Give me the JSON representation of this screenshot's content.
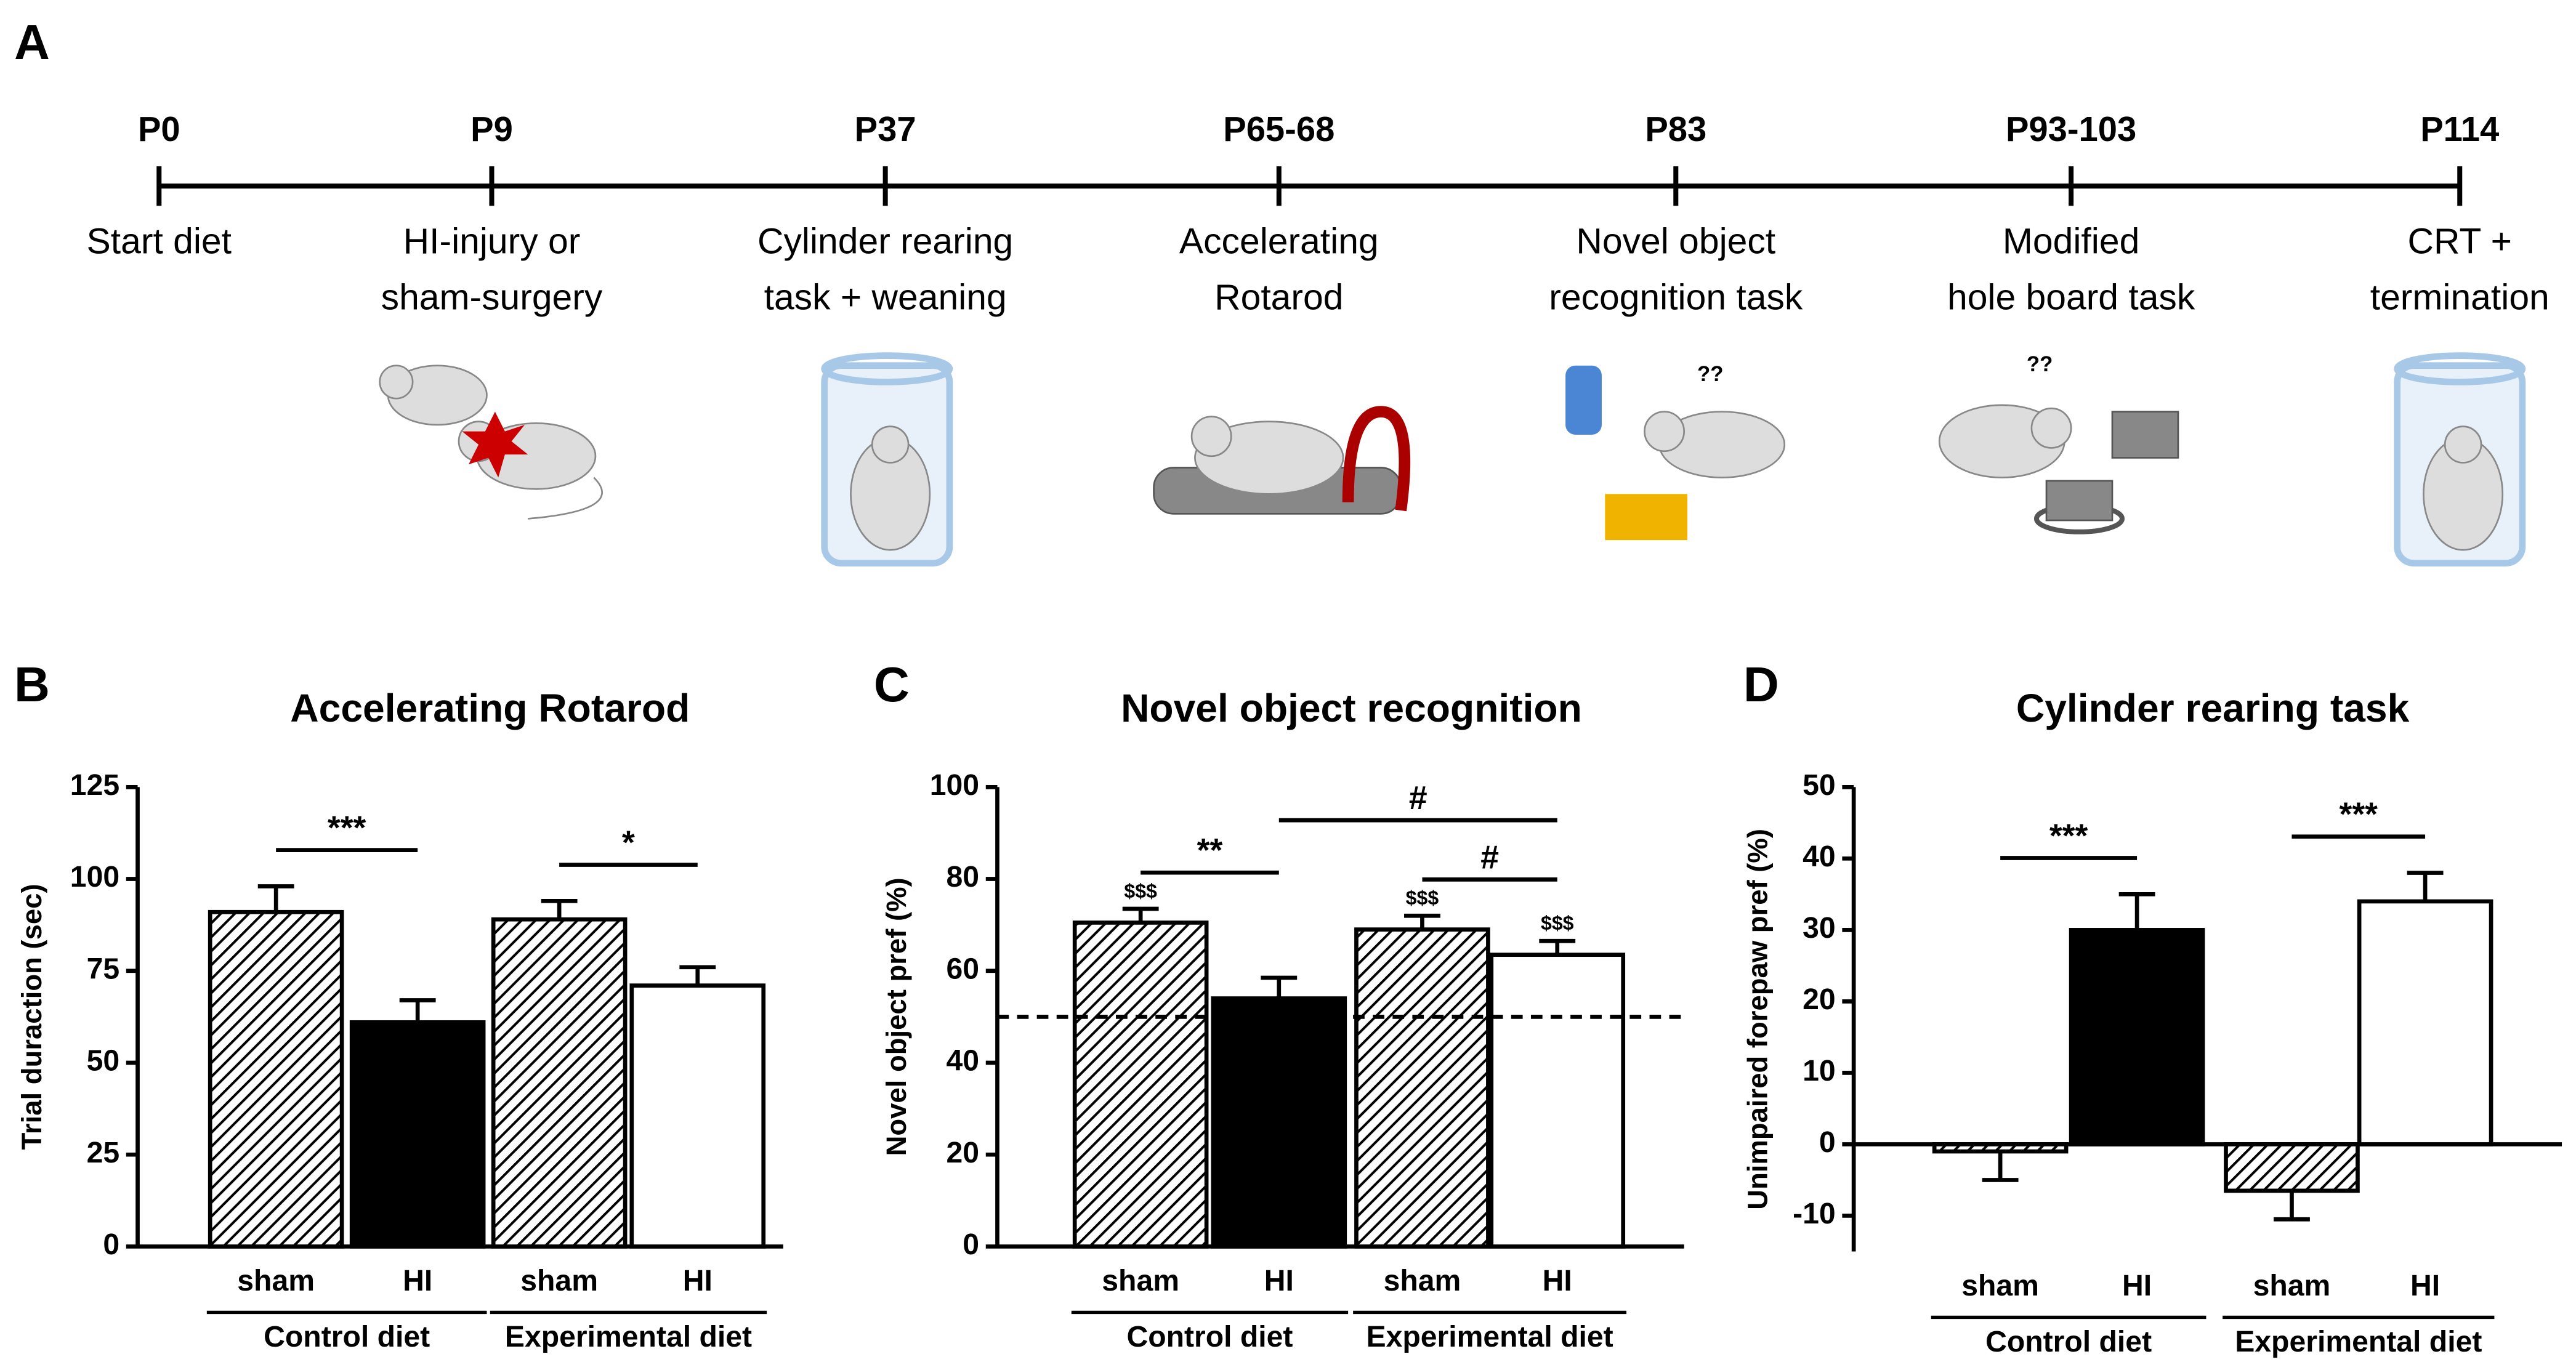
{
  "panel_labels": [
    "A",
    "B",
    "C",
    "D"
  ],
  "timeline": {
    "items": [
      {
        "day": "P0",
        "label": [
          "Start diet"
        ]
      },
      {
        "day": "P9",
        "label": [
          "HI-injury or",
          "sham-surgery"
        ]
      },
      {
        "day": "P37",
        "label": [
          "Cylinder rearing",
          "task + weaning"
        ]
      },
      {
        "day": "P65-68",
        "label": [
          "Accelerating",
          "Rotarod"
        ]
      },
      {
        "day": "P83",
        "label": [
          "Novel object",
          "recognition task"
        ]
      },
      {
        "day": "P93-103",
        "label": [
          "Modified",
          "hole board task"
        ]
      },
      {
        "day": "P114",
        "label": [
          "CRT +",
          "termination"
        ]
      }
    ],
    "icon_texts": [
      "??",
      "??"
    ]
  },
  "chart_data": [
    {
      "type": "bar",
      "title": "Accelerating Rotarod",
      "y_label": "Trial duraction (sec)",
      "categories": [
        "sham",
        "HI",
        "sham",
        "HI"
      ],
      "values": [
        91,
        61,
        89,
        71
      ],
      "errors": [
        7,
        6,
        5,
        5
      ],
      "colors": [
        "#000000",
        "#000000",
        "#000000",
        "#ffffff"
      ],
      "hatch": [
        true,
        false,
        true,
        false
      ],
      "groups": [
        {
          "name": "Control diet",
          "from": 0,
          "to": 1
        },
        {
          "name": "Experimental diet",
          "from": 2,
          "to": 3
        }
      ],
      "significance": [
        {
          "label": "***",
          "from": 0,
          "to": 1
        },
        {
          "label": "*",
          "from": 2,
          "to": 3
        }
      ],
      "ylim": [
        0,
        125
      ],
      "yticks": [
        0,
        25,
        50,
        75,
        100,
        125
      ]
    },
    {
      "type": "bar",
      "title": "Novel object recognition",
      "y_label": "Novel object pref  (%)",
      "categories": [
        "sham",
        "HI",
        "sham",
        "HI"
      ],
      "values": [
        70.5,
        54,
        69,
        63.5
      ],
      "errors": [
        3,
        4.5,
        3,
        3
      ],
      "bar_labels": [
        "$$$",
        null,
        "$$$",
        "$$$"
      ],
      "colors": [
        "#000000",
        "#000000",
        "#000000",
        "#ffffff"
      ],
      "hatch": [
        true,
        false,
        true,
        false
      ],
      "groups": [
        {
          "name": "Control diet",
          "from": 0,
          "to": 1
        },
        {
          "name": "Experimental diet",
          "from": 2,
          "to": 3
        }
      ],
      "significance": [
        {
          "label": "**",
          "from": 0,
          "to": 1
        },
        {
          "label": "#",
          "from": 1,
          "to": 3
        },
        {
          "label": "#",
          "from": 2,
          "to": 3
        }
      ],
      "reference_line": 50,
      "ylim": [
        0,
        100
      ],
      "yticks": [
        0,
        20,
        40,
        60,
        80,
        100
      ]
    },
    {
      "type": "bar",
      "title": "Cylinder rearing task",
      "y_label": "Unimpaired forepaw pref (%)",
      "categories": [
        "sham",
        "HI",
        "sham",
        "HI"
      ],
      "values": [
        -1,
        30,
        -6.5,
        34
      ],
      "errors": [
        4,
        5,
        4,
        4
      ],
      "colors": [
        "#000000",
        "#000000",
        "#000000",
        "#ffffff"
      ],
      "hatch": [
        true,
        false,
        true,
        false
      ],
      "groups": [
        {
          "name": "Control diet",
          "from": 0,
          "to": 1
        },
        {
          "name": "Experimental diet",
          "from": 2,
          "to": 3
        }
      ],
      "significance": [
        {
          "label": "***",
          "from": 0,
          "to": 1
        },
        {
          "label": "***",
          "from": 2,
          "to": 3
        }
      ],
      "ylim": [
        -15,
        50
      ],
      "yticks": [
        -10,
        0,
        10,
        20,
        30,
        40,
        50
      ]
    }
  ]
}
